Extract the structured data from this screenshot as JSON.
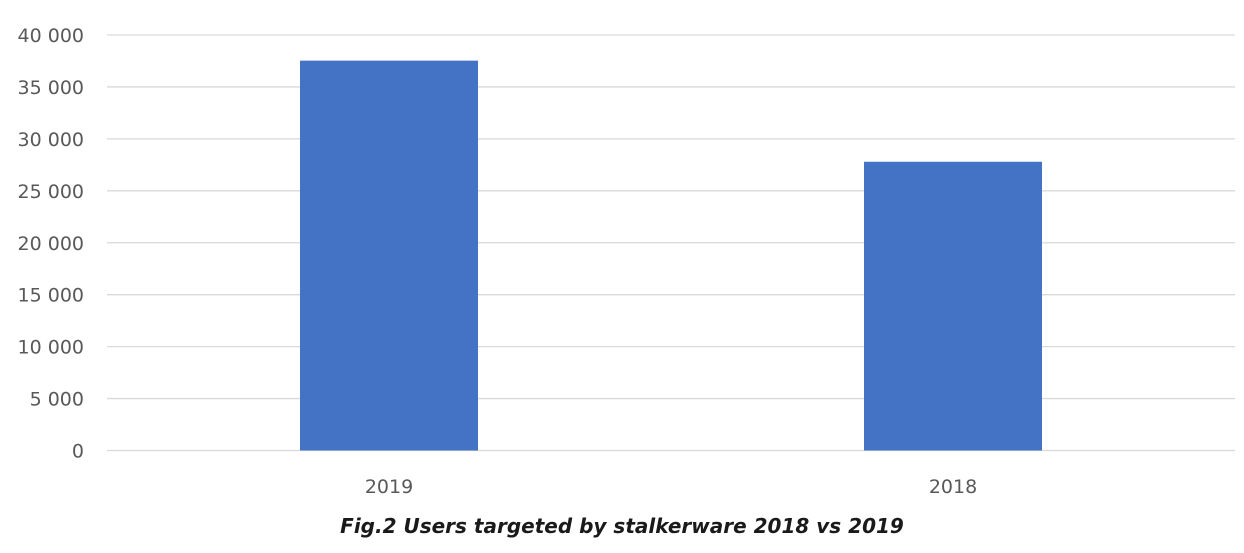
{
  "chart_data": {
    "type": "bar",
    "categories": [
      "2019",
      "2018"
    ],
    "values": [
      37532,
      27798
    ],
    "ylim": [
      0,
      40000
    ],
    "yticks": [
      "0",
      "5 000",
      "10 000",
      "15 000",
      "20 000",
      "25 000",
      "30 000",
      "35 000",
      "40 000"
    ],
    "ytick_values": [
      0,
      5000,
      10000,
      15000,
      20000,
      25000,
      30000,
      35000,
      40000
    ],
    "grid": true,
    "bar_color": "#4472c4",
    "caption": "Fig.2 Users targeted by stalkerware 2018 vs 2019"
  }
}
